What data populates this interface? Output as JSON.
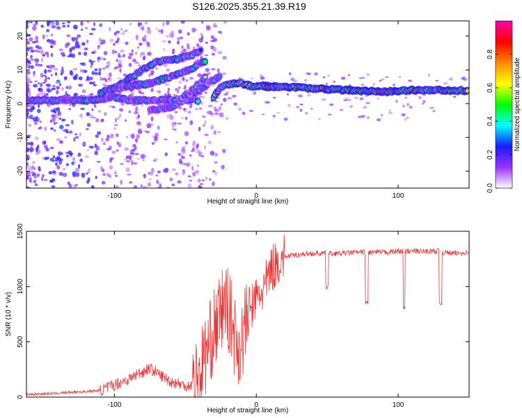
{
  "title": "S126.2025.355.21.39.R19",
  "chart_data": [
    {
      "type": "heatmap",
      "name": "spectrogram",
      "xlabel": "Height of straight line (km)",
      "ylabel": "Frequency (Hz)",
      "xlim": [
        -162,
        150
      ],
      "ylim": [
        -25,
        24.5
      ],
      "xticks": [
        -100,
        0,
        100
      ],
      "yticks": [
        -20,
        -10,
        0,
        10,
        20
      ],
      "colorbar": {
        "label": "Normalized spectral amplitude",
        "range": [
          0,
          1
        ],
        "ticks": [
          0.0,
          0.2,
          0.4,
          0.6,
          0.8
        ],
        "colors": [
          "#ffffff",
          "#9b30ff",
          "#1a1aff",
          "#00ffff",
          "#00ff00",
          "#ffff00",
          "#ff8800",
          "#ff0000",
          "#ff00aa"
        ]
      },
      "ridges": [
        {
          "name": "carrier",
          "points": [
            [
              -162,
              1
            ],
            [
              -115,
              1
            ],
            [
              -100,
              2
            ],
            [
              -90,
              1
            ],
            [
              -75,
              1
            ],
            [
              -60,
              1
            ],
            [
              -40,
              1
            ]
          ],
          "amplitude": 0.35
        },
        {
          "name": "sweep-1",
          "points": [
            [
              -110,
              3
            ],
            [
              -95,
              6
            ],
            [
              -80,
              10
            ],
            [
              -70,
              12.5
            ],
            [
              -58,
              13
            ],
            [
              -45,
              14.5
            ],
            [
              -38,
              16
            ]
          ],
          "amplitude": 0.4
        },
        {
          "name": "sweep-2",
          "points": [
            [
              -105,
              4
            ],
            [
              -90,
              5
            ],
            [
              -75,
              6
            ],
            [
              -60,
              8
            ],
            [
              -45,
              10.5
            ],
            [
              -35,
              13
            ]
          ],
          "amplitude": 0.38
        },
        {
          "name": "sweep-3",
          "points": [
            [
              -75,
              -2
            ],
            [
              -60,
              -1
            ],
            [
              -50,
              1
            ],
            [
              -40,
              4
            ],
            [
              -30,
              7
            ],
            [
              -25,
              8
            ]
          ],
          "amplitude": 0.3
        },
        {
          "name": "sweep-4",
          "points": [
            [
              -55,
              1
            ],
            [
              -48,
              3
            ],
            [
              -40,
              6
            ],
            [
              -35,
              8
            ]
          ],
          "amplitude": 0.3
        },
        {
          "name": "merge",
          "points": [
            [
              -30,
              2
            ],
            [
              -25,
              5
            ],
            [
              -18,
              6
            ],
            [
              -10,
              6
            ],
            [
              -3,
              5
            ],
            [
              5,
              5.5
            ],
            [
              15,
              5
            ]
          ],
          "amplitude": 0.55
        },
        {
          "name": "tone",
          "points": [
            [
              5,
              5
            ],
            [
              20,
              5
            ],
            [
              40,
              4.5
            ],
            [
              55,
              4.2
            ],
            [
              75,
              3.8
            ],
            [
              90,
              3.5
            ],
            [
              110,
              4
            ],
            [
              130,
              4
            ],
            [
              150,
              3.8
            ]
          ],
          "amplitude": 0.65
        }
      ]
    },
    {
      "type": "line",
      "name": "snr",
      "xlabel": "Height of straight line (km)",
      "ylabel": "SNR (10 * v/v)",
      "xlim": [
        -162,
        150
      ],
      "ylim": [
        0,
        1500
      ],
      "xticks": [
        -100,
        0,
        100
      ],
      "yticks": [
        0,
        500,
        1000,
        1500
      ],
      "color": "#ee3333",
      "series": [
        {
          "name": "SNR",
          "x": [
            -162,
            -150,
            -140,
            -130,
            -120,
            -110,
            -105,
            -100,
            -95,
            -90,
            -85,
            -80,
            -76,
            -72,
            -68,
            -64,
            -60,
            -56,
            -52,
            -48,
            -44,
            -40,
            -36,
            -33,
            -30,
            -27,
            -24,
            -21,
            -18,
            -15,
            -12,
            -10,
            -8,
            -6,
            -4,
            -2,
            0,
            2,
            4,
            6,
            8,
            10,
            12,
            14,
            16,
            18,
            20,
            25,
            30,
            40,
            48,
            50,
            52,
            60,
            70,
            76,
            78,
            80,
            90,
            100,
            103,
            104,
            106,
            110,
            115,
            120,
            128,
            130,
            132,
            140,
            150
          ],
          "y": [
            25,
            30,
            35,
            45,
            50,
            60,
            85,
            110,
            140,
            160,
            200,
            230,
            260,
            240,
            200,
            170,
            140,
            130,
            110,
            100,
            130,
            220,
            380,
            480,
            600,
            680,
            800,
            850,
            700,
            550,
            450,
            520,
            620,
            780,
            800,
            850,
            880,
            930,
            950,
            1000,
            1050,
            1150,
            1180,
            1200,
            1230,
            1250,
            1270,
            1280,
            1290,
            1300,
            1300,
            1000,
            1300,
            1300,
            1310,
            1310,
            850,
            1310,
            1310,
            1320,
            1320,
            800,
            1320,
            1320,
            1320,
            1320,
            1320,
            850,
            1310,
            1300,
            1310
          ]
        }
      ]
    }
  ]
}
